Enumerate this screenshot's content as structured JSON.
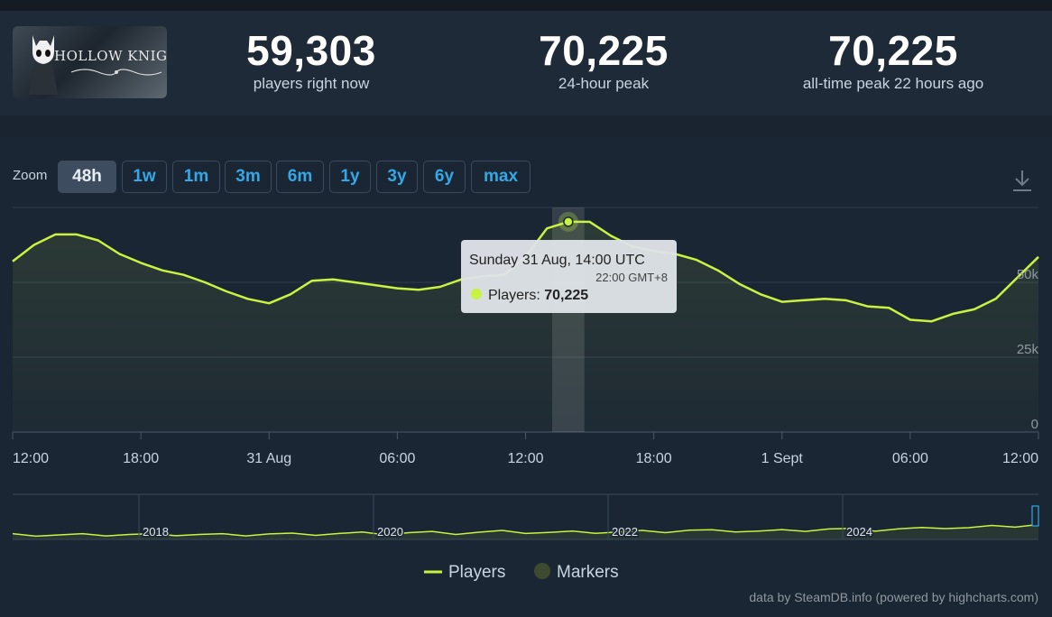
{
  "game": {
    "title": "HOLLOW KNIGHT"
  },
  "stats": [
    {
      "value": "59,303",
      "label": "players right now"
    },
    {
      "value": "70,225",
      "label": "24-hour peak"
    },
    {
      "value": "70,225",
      "label": "all-time peak 22 hours ago"
    }
  ],
  "zoom": {
    "label": "Zoom",
    "options": [
      "48h",
      "1w",
      "1m",
      "3m",
      "6m",
      "1y",
      "3y",
      "6y",
      "max"
    ],
    "active": "48h"
  },
  "toolbar": {
    "download_icon": "download-icon"
  },
  "colors": {
    "line": "#c9f241",
    "accent": "#34a8e6",
    "background": "#1b2634"
  },
  "chart_data": {
    "type": "line",
    "title": "",
    "xlabel": "",
    "ylabel": "",
    "x_start": "2025-08-30 12:00",
    "x_end": "2025-09-01 12:00",
    "x_ticks": [
      "12:00",
      "18:00",
      "31 Aug",
      "06:00",
      "12:00",
      "18:00",
      "1 Sept",
      "06:00",
      "12:00"
    ],
    "y_ticks": [
      "0",
      "25k",
      "50k"
    ],
    "ylim": [
      0,
      75000
    ],
    "series": [
      {
        "name": "Players",
        "x": [
          "30 Aug 12:00",
          "30 Aug 13:00",
          "30 Aug 14:00",
          "30 Aug 15:00",
          "30 Aug 16:00",
          "30 Aug 17:00",
          "30 Aug 18:00",
          "30 Aug 19:00",
          "30 Aug 20:00",
          "30 Aug 21:00",
          "30 Aug 22:00",
          "30 Aug 23:00",
          "31 Aug 00:00",
          "31 Aug 01:00",
          "31 Aug 02:00",
          "31 Aug 03:00",
          "31 Aug 04:00",
          "31 Aug 05:00",
          "31 Aug 06:00",
          "31 Aug 07:00",
          "31 Aug 08:00",
          "31 Aug 09:00",
          "31 Aug 10:00",
          "31 Aug 11:00",
          "31 Aug 12:00",
          "31 Aug 13:00",
          "31 Aug 14:00",
          "31 Aug 15:00",
          "31 Aug 16:00",
          "31 Aug 17:00",
          "31 Aug 18:00",
          "31 Aug 19:00",
          "31 Aug 20:00",
          "31 Aug 21:00",
          "31 Aug 22:00",
          "31 Aug 23:00",
          "1 Sept 00:00",
          "1 Sept 01:00",
          "1 Sept 02:00",
          "1 Sept 03:00",
          "1 Sept 04:00",
          "1 Sept 05:00",
          "1 Sept 06:00",
          "1 Sept 07:00",
          "1 Sept 08:00",
          "1 Sept 09:00",
          "1 Sept 10:00",
          "1 Sept 11:00",
          "1 Sept 12:00"
        ],
        "values": [
          57000,
          62500,
          66000,
          66000,
          64000,
          59500,
          56500,
          54000,
          52500,
          50000,
          47000,
          44500,
          43000,
          46000,
          50500,
          51000,
          50000,
          49000,
          48000,
          47500,
          48500,
          51000,
          52000,
          52500,
          58500,
          68000,
          70225,
          70200,
          65500,
          62000,
          60500,
          59500,
          57500,
          54000,
          49500,
          46000,
          43500,
          44000,
          44500,
          44000,
          42000,
          41500,
          37500,
          37000,
          39500,
          41000,
          44500,
          51500,
          58500
        ]
      }
    ],
    "navigator": {
      "x_ticks": [
        "2018",
        "2020",
        "2022",
        "2024"
      ],
      "values": [
        2,
        2.1,
        1.9,
        2,
        2.2,
        2.1,
        2,
        2.3,
        2.1,
        2,
        2.2,
        2.4,
        2.3,
        2.5,
        2.6,
        2.8,
        2.7,
        3,
        3.1,
        2.9,
        3.2,
        3.6,
        3.4,
        3.1,
        3.3,
        3.5,
        3.3,
        3.6,
        3.8,
        4.2,
        3.9,
        4.1,
        3.8,
        4,
        4.4,
        4.8,
        4.6,
        4.5,
        4.9,
        5,
        5.8,
        5.4,
        6,
        6.5,
        7
      ]
    },
    "legend": [
      {
        "name": "Players"
      },
      {
        "name": "Markers"
      }
    ],
    "legend_position": "bottom-center",
    "tooltip": {
      "date": "Sunday 31 Aug, 14:00 UTC",
      "local": "22:00 GMT+8",
      "series": "Players",
      "value": "70,225"
    }
  },
  "credits": "data by SteamDB.info (powered by highcharts.com)"
}
